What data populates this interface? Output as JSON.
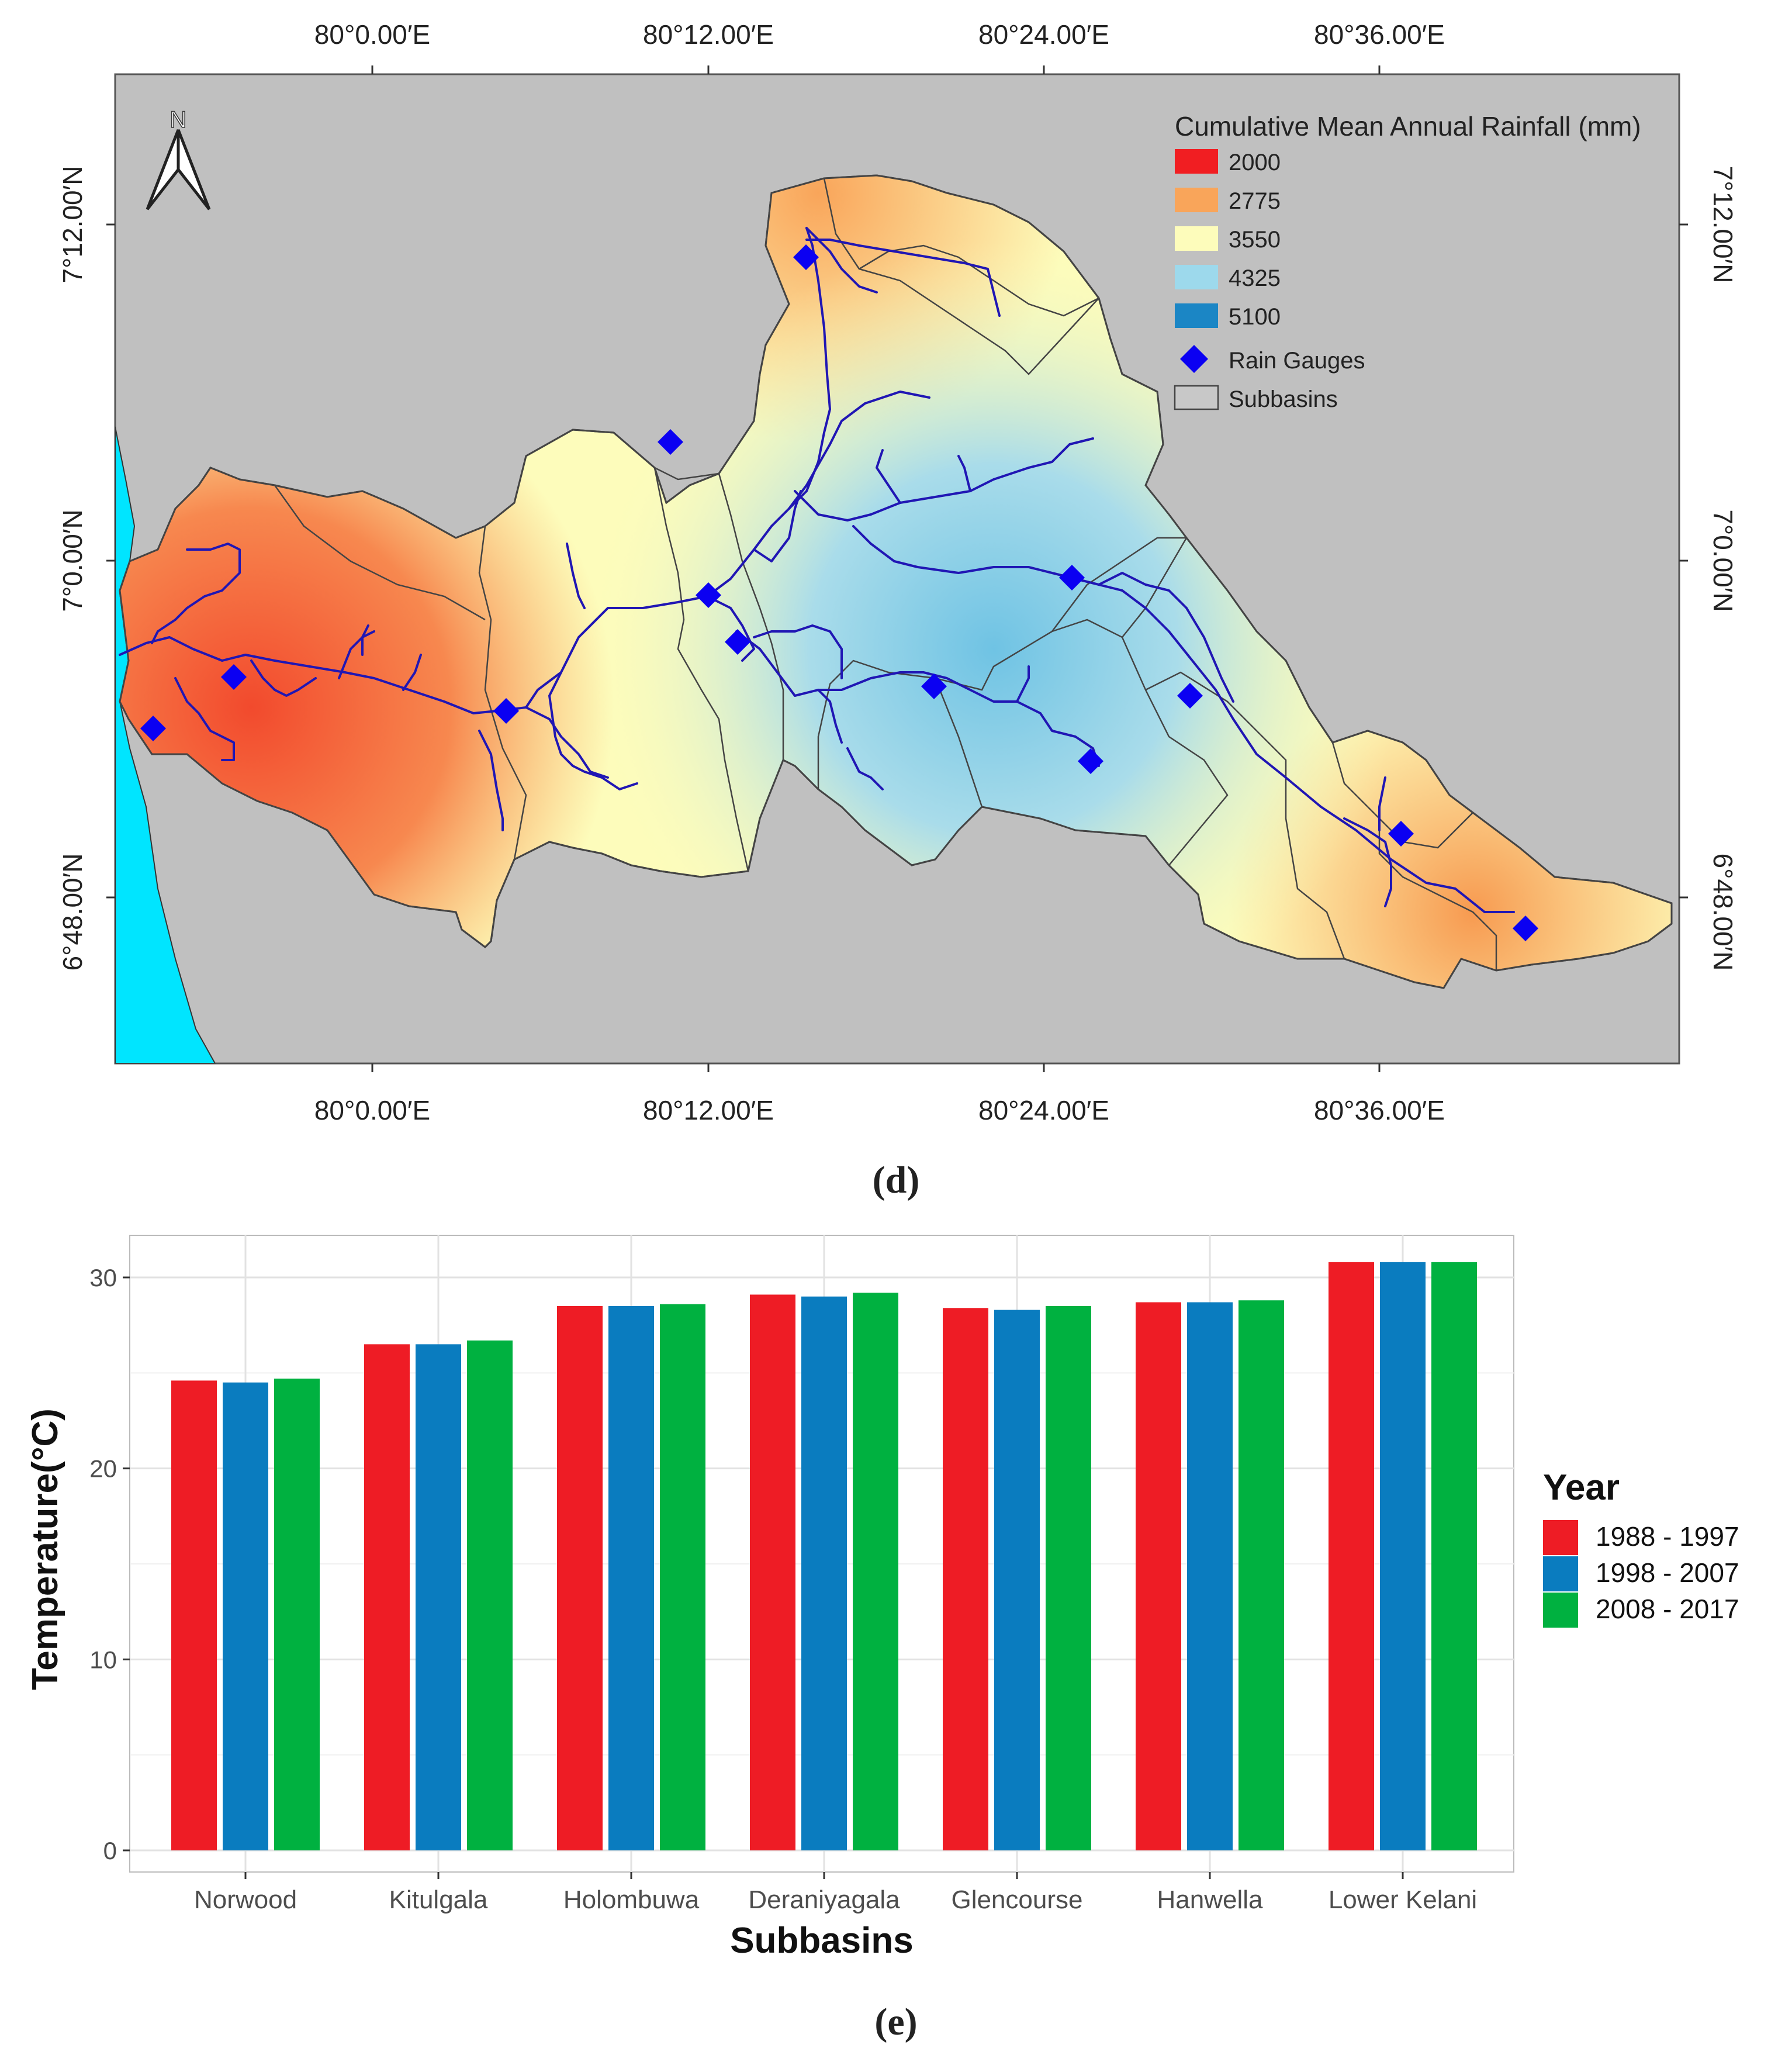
{
  "panel_d": {
    "caption": "(d)",
    "lon_ticks": [
      "80°0.00′E",
      "80°12.00′E",
      "80°24.00′E",
      "80°36.00′E"
    ],
    "lat_ticks": [
      "7°12.00′N",
      "7°0.00′N",
      "6°48.00′N"
    ],
    "north_arrow_label": "N",
    "legend": {
      "title": "Cumulative Mean Annual Rainfall (mm)",
      "classes": [
        {
          "label": "2000",
          "color": "#f11e22"
        },
        {
          "label": "2775",
          "color": "#f9a55a"
        },
        {
          "label": "3550",
          "color": "#fdfcbb"
        },
        {
          "label": "4325",
          "color": "#9dd9ec"
        },
        {
          "label": "5100",
          "color": "#1b86c5"
        }
      ],
      "rain_gauges_label": "Rain Gauges",
      "subbasins_label": "Subbasins"
    },
    "colors": {
      "background": "#c0c0c0",
      "sea": "#00e5ff",
      "rivers": "#2016b4",
      "gauges": "#0b00f2"
    }
  },
  "panel_e": {
    "caption": "(e)",
    "chart_data": {
      "type": "bar",
      "title": "",
      "xlabel": "Subbasins",
      "ylabel": "Temperature(°C)",
      "ylim": [
        0,
        32
      ],
      "yticks": [
        0,
        10,
        20,
        30
      ],
      "legend_title": "Year",
      "legend_position": "right",
      "grid": true,
      "categories": [
        "Norwood",
        "Kitulgala",
        "Holombuwa",
        "Deraniyagala",
        "Glencourse",
        "Hanwella",
        "Lower Kelani"
      ],
      "series": [
        {
          "name": "1988 - 1997",
          "color": "#ee1c25",
          "values": [
            24.6,
            26.5,
            28.5,
            29.1,
            28.4,
            28.7,
            30.8
          ]
        },
        {
          "name": "1998 - 2007",
          "color": "#0a7cbf",
          "values": [
            24.5,
            26.5,
            28.5,
            29.0,
            28.3,
            28.7,
            30.8
          ]
        },
        {
          "name": "2008 - 2017",
          "color": "#00b140",
          "values": [
            24.7,
            26.7,
            28.6,
            29.2,
            28.5,
            28.8,
            30.8
          ]
        }
      ]
    }
  }
}
